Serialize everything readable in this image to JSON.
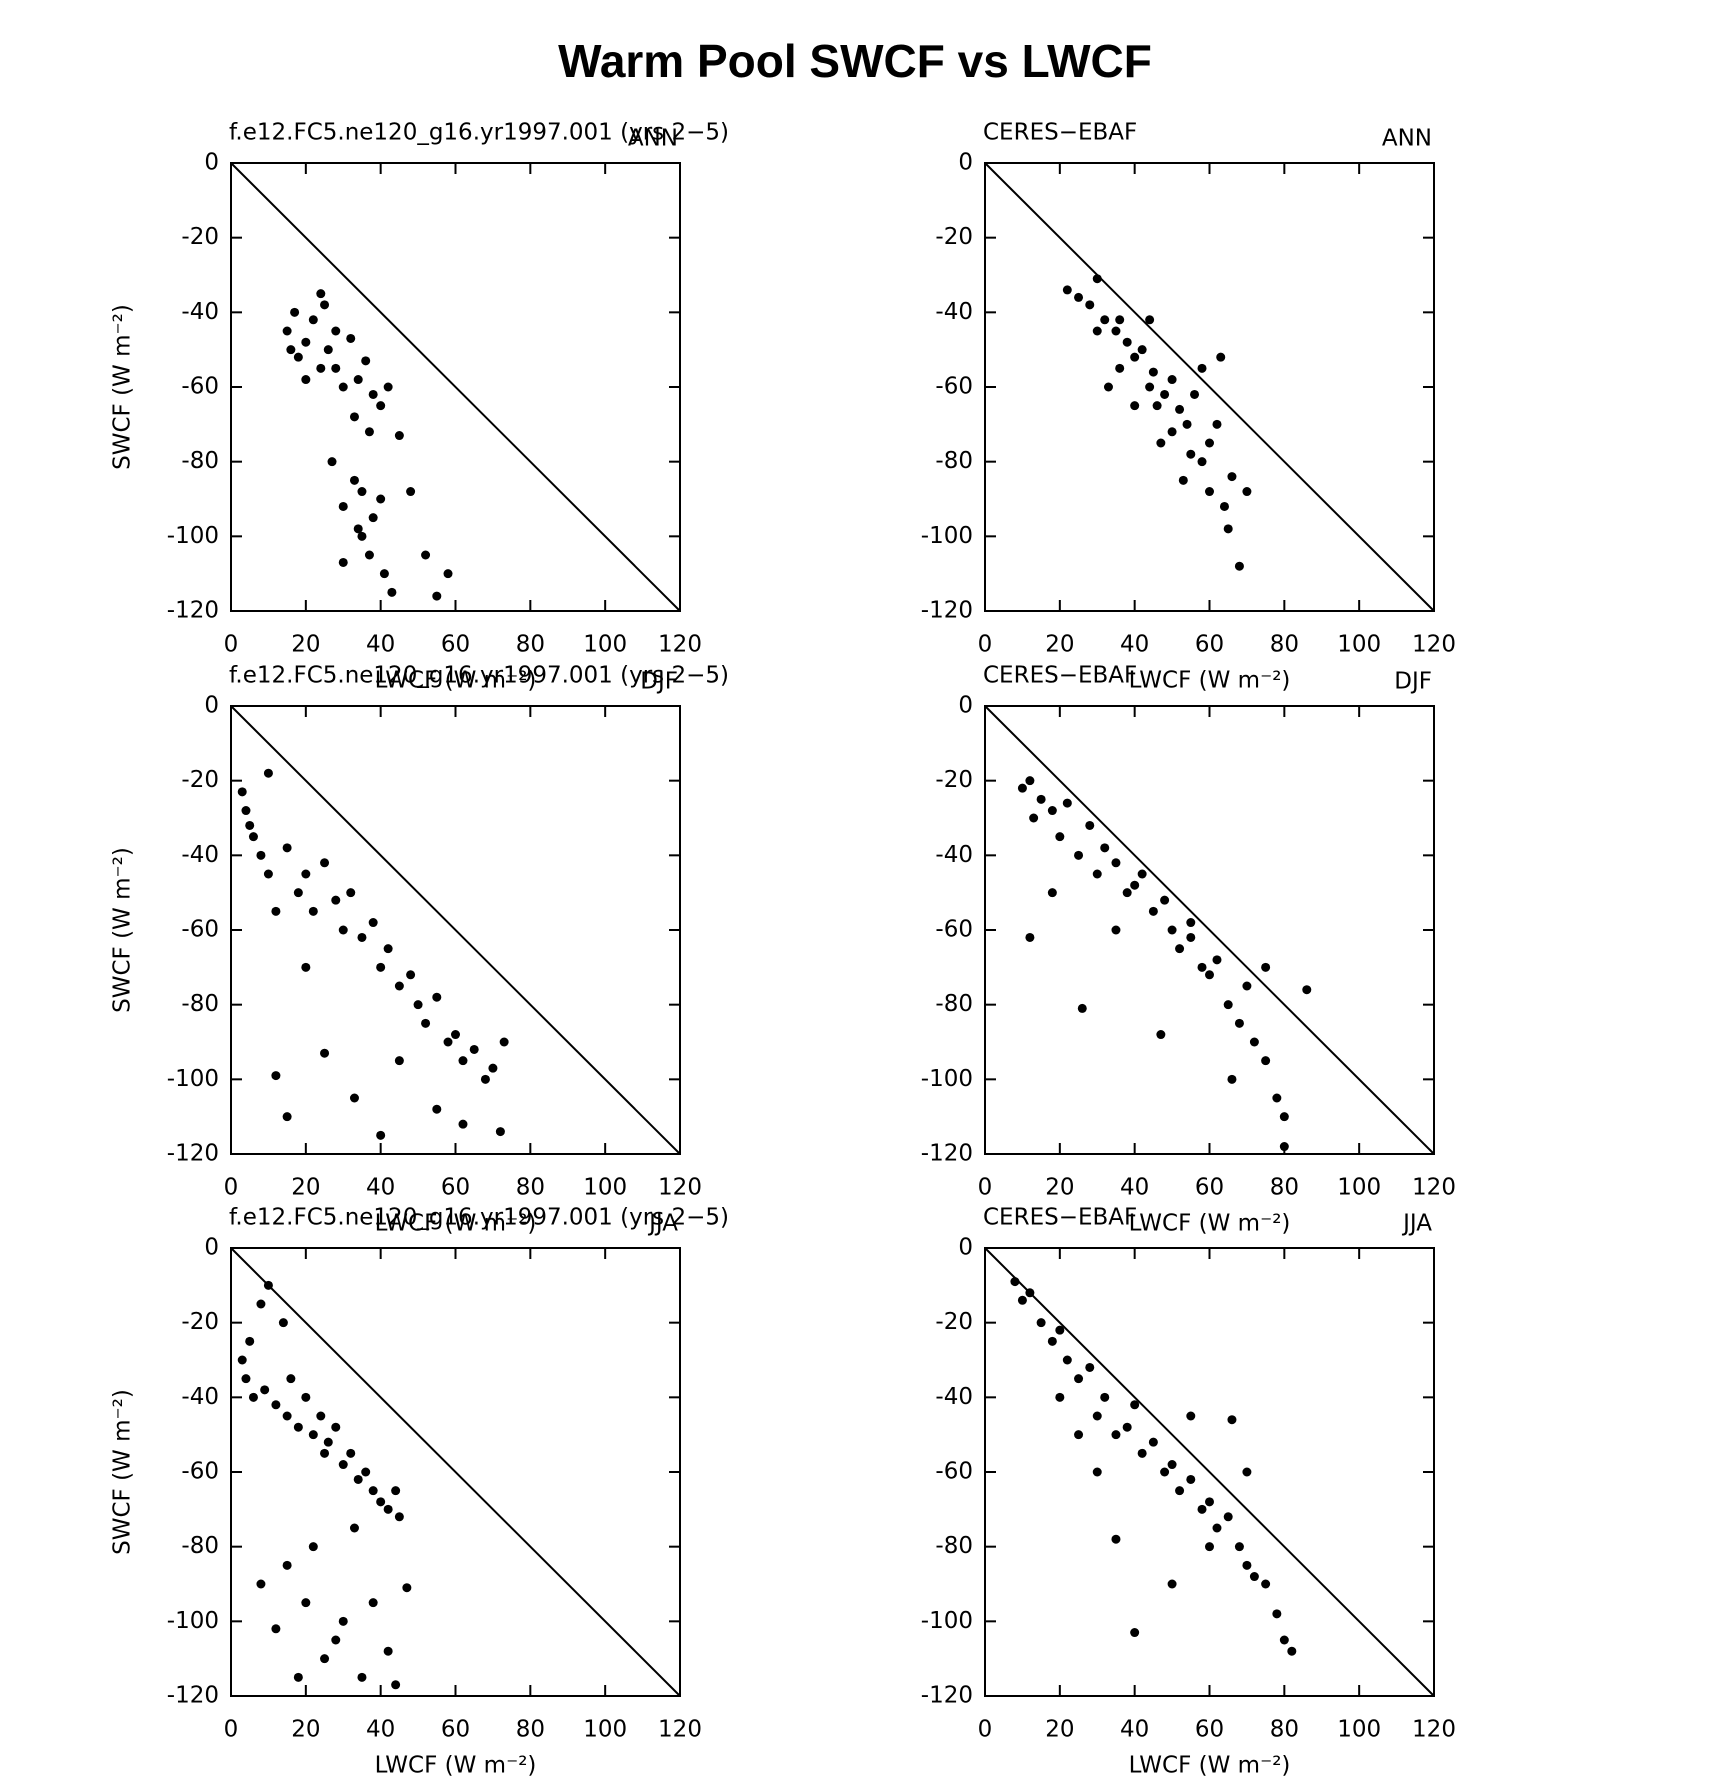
{
  "title": "Warm Pool SWCF vs LWCF",
  "chart_data": [
    {
      "type": "scatter",
      "title_left": "f.e12.FC5.ne120_g16.yr1997.001 (yrs 2−5)",
      "title_right": "ANN",
      "xlabel": "LWCF (W m⁻²)",
      "ylabel": "SWCF (W m⁻²)",
      "color": "#000000",
      "xlim": [
        0,
        120
      ],
      "ylim": [
        -120,
        0
      ],
      "xticks": [
        0,
        20,
        40,
        60,
        80,
        100,
        120
      ],
      "yticks": [
        -120,
        -100,
        -80,
        -60,
        -40,
        -20,
        0
      ],
      "reference_line": {
        "x": [
          0,
          120
        ],
        "y": [
          0,
          -120
        ]
      },
      "x": [
        15,
        17,
        18,
        20,
        22,
        24,
        25,
        26,
        28,
        30,
        32,
        34,
        36,
        38,
        40,
        16,
        20,
        24,
        28,
        33,
        37,
        42,
        27,
        30,
        33,
        35,
        38,
        40,
        45,
        30,
        34,
        37,
        41,
        48,
        52,
        55,
        58,
        35,
        43
      ],
      "y": [
        -45,
        -40,
        -52,
        -48,
        -42,
        -55,
        -38,
        -50,
        -45,
        -60,
        -47,
        -58,
        -53,
        -62,
        -65,
        -50,
        -58,
        -35,
        -55,
        -68,
        -72,
        -60,
        -80,
        -92,
        -85,
        -100,
        -95,
        -90,
        -73,
        -107,
        -98,
        -105,
        -110,
        -88,
        -105,
        -116,
        -110,
        -88,
        -115
      ]
    },
    {
      "type": "scatter",
      "title_left": "CERES−EBAF",
      "title_right": "ANN",
      "xlabel": "LWCF (W m⁻²)",
      "color": "#000000",
      "xlim": [
        0,
        120
      ],
      "ylim": [
        -120,
        0
      ],
      "xticks": [
        0,
        20,
        40,
        60,
        80,
        100,
        120
      ],
      "yticks": [
        -120,
        -100,
        -80,
        -60,
        -40,
        -20,
        0
      ],
      "reference_line": {
        "x": [
          0,
          120
        ],
        "y": [
          0,
          -120
        ]
      },
      "x": [
        22,
        25,
        28,
        30,
        30,
        32,
        35,
        36,
        38,
        40,
        42,
        44,
        45,
        46,
        48,
        50,
        50,
        52,
        54,
        55,
        56,
        58,
        60,
        60,
        62,
        64,
        65,
        66,
        68,
        70,
        33,
        40,
        47,
        53,
        58,
        63,
        36,
        44
      ],
      "y": [
        -34,
        -36,
        -38,
        -31,
        -45,
        -42,
        -45,
        -55,
        -48,
        -52,
        -50,
        -60,
        -56,
        -65,
        -62,
        -58,
        -72,
        -66,
        -70,
        -78,
        -62,
        -80,
        -75,
        -88,
        -70,
        -92,
        -98,
        -84,
        -108,
        -88,
        -60,
        -65,
        -75,
        -85,
        -55,
        -52,
        -42,
        -42
      ]
    },
    {
      "type": "scatter",
      "title_left": "f.e12.FC5.ne120_g16.yr1997.001 (yrs 2−5)",
      "title_right": "DJF",
      "xlabel": "LWCF (W m⁻²)",
      "ylabel": "SWCF (W m⁻²)",
      "color": "#000000",
      "xlim": [
        0,
        120
      ],
      "ylim": [
        -120,
        0
      ],
      "xticks": [
        0,
        20,
        40,
        60,
        80,
        100,
        120
      ],
      "yticks": [
        -120,
        -100,
        -80,
        -60,
        -40,
        -20,
        0
      ],
      "reference_line": {
        "x": [
          0,
          120
        ],
        "y": [
          0,
          -120
        ]
      },
      "x": [
        3,
        4,
        5,
        6,
        8,
        10,
        10,
        12,
        15,
        18,
        20,
        22,
        25,
        28,
        30,
        32,
        35,
        38,
        40,
        42,
        45,
        48,
        50,
        52,
        55,
        58,
        60,
        62,
        65,
        68,
        70,
        73,
        12,
        15,
        20,
        25,
        33,
        40,
        45,
        55,
        62,
        72
      ],
      "y": [
        -23,
        -28,
        -32,
        -35,
        -40,
        -18,
        -45,
        -55,
        -38,
        -50,
        -45,
        -55,
        -42,
        -52,
        -60,
        -50,
        -62,
        -58,
        -70,
        -65,
        -75,
        -72,
        -80,
        -85,
        -78,
        -90,
        -88,
        -95,
        -92,
        -100,
        -97,
        -90,
        -99,
        -110,
        -70,
        -93,
        -105,
        -115,
        -95,
        -108,
        -112,
        -114
      ]
    },
    {
      "type": "scatter",
      "title_left": "CERES−EBAF",
      "title_right": "DJF",
      "xlabel": "LWCF (W m⁻²)",
      "color": "#000000",
      "xlim": [
        0,
        120
      ],
      "ylim": [
        -120,
        0
      ],
      "xticks": [
        0,
        20,
        40,
        60,
        80,
        100,
        120
      ],
      "yticks": [
        -120,
        -100,
        -80,
        -60,
        -40,
        -20,
        0
      ],
      "reference_line": {
        "x": [
          0,
          120
        ],
        "y": [
          0,
          -120
        ]
      },
      "x": [
        10,
        12,
        13,
        15,
        18,
        20,
        22,
        25,
        28,
        30,
        32,
        35,
        38,
        40,
        42,
        45,
        48,
        50,
        52,
        55,
        58,
        60,
        62,
        65,
        68,
        70,
        72,
        75,
        78,
        80,
        12,
        18,
        26,
        35,
        47,
        55,
        66,
        75,
        86,
        80
      ],
      "y": [
        -22,
        -20,
        -30,
        -25,
        -28,
        -35,
        -26,
        -40,
        -32,
        -45,
        -38,
        -42,
        -50,
        -48,
        -45,
        -55,
        -52,
        -60,
        -65,
        -62,
        -70,
        -72,
        -68,
        -80,
        -85,
        -75,
        -90,
        -95,
        -105,
        -110,
        -62,
        -50,
        -81,
        -60,
        -88,
        -58,
        -100,
        -70,
        -76,
        -118
      ]
    },
    {
      "type": "scatter",
      "title_left": "f.e12.FC5.ne120_g16.yr1997.001 (yrs 2−5)",
      "title_right": "JJA",
      "xlabel": "LWCF (W m⁻²)",
      "ylabel": "SWCF (W m⁻²)",
      "color": "#000000",
      "xlim": [
        0,
        120
      ],
      "ylim": [
        -120,
        0
      ],
      "xticks": [
        0,
        20,
        40,
        60,
        80,
        100,
        120
      ],
      "yticks": [
        -120,
        -100,
        -80,
        -60,
        -40,
        -20,
        0
      ],
      "reference_line": {
        "x": [
          0,
          120
        ],
        "y": [
          0,
          -120
        ]
      },
      "x": [
        3,
        4,
        5,
        6,
        8,
        9,
        10,
        12,
        14,
        15,
        16,
        18,
        20,
        22,
        24,
        25,
        26,
        28,
        30,
        32,
        34,
        36,
        38,
        40,
        42,
        44,
        45,
        8,
        12,
        15,
        18,
        20,
        22,
        25,
        28,
        30,
        33,
        35,
        38,
        42,
        47,
        44
      ],
      "y": [
        -30,
        -35,
        -25,
        -40,
        -15,
        -38,
        -10,
        -42,
        -20,
        -45,
        -35,
        -48,
        -40,
        -50,
        -45,
        -55,
        -52,
        -48,
        -58,
        -55,
        -62,
        -60,
        -65,
        -68,
        -70,
        -65,
        -72,
        -90,
        -102,
        -85,
        -115,
        -95,
        -80,
        -110,
        -105,
        -100,
        -75,
        -115,
        -95,
        -108,
        -91,
        -117
      ]
    },
    {
      "type": "scatter",
      "title_left": "CERES−EBAF",
      "title_right": "JJA",
      "xlabel": "LWCF (W m⁻²)",
      "color": "#000000",
      "xlim": [
        0,
        120
      ],
      "ylim": [
        -120,
        0
      ],
      "xticks": [
        0,
        20,
        40,
        60,
        80,
        100,
        120
      ],
      "yticks": [
        -120,
        -100,
        -80,
        -60,
        -40,
        -20,
        0
      ],
      "reference_line": {
        "x": [
          0,
          120
        ],
        "y": [
          0,
          -120
        ]
      },
      "x": [
        8,
        10,
        12,
        15,
        18,
        20,
        22,
        25,
        28,
        30,
        32,
        35,
        38,
        40,
        42,
        45,
        48,
        50,
        52,
        55,
        58,
        60,
        62,
        65,
        68,
        70,
        72,
        75,
        78,
        80,
        82,
        20,
        30,
        40,
        50,
        60,
        66,
        70,
        25,
        35,
        55
      ],
      "y": [
        -9,
        -14,
        -12,
        -20,
        -25,
        -22,
        -30,
        -35,
        -32,
        -45,
        -40,
        -50,
        -48,
        -42,
        -55,
        -52,
        -60,
        -58,
        -65,
        -62,
        -70,
        -68,
        -75,
        -72,
        -80,
        -85,
        -88,
        -90,
        -98,
        -105,
        -108,
        -40,
        -60,
        -103,
        -90,
        -80,
        -46,
        -60,
        -50,
        -78,
        -45
      ]
    }
  ]
}
